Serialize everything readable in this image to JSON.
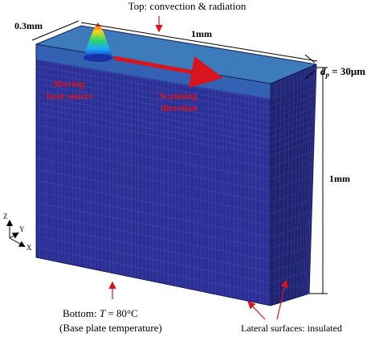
{
  "top_label": "Top: convection & radiation",
  "width_label": "0.3mm",
  "length_label": "1mm",
  "height_label": "1mm",
  "layer_label": {
    "symbol": "d",
    "sub": "p",
    "value": " = 30μm"
  },
  "heat_source": [
    "Moving",
    "heat source"
  ],
  "scan_direction": [
    "Scanning",
    "direction"
  ],
  "axes": {
    "z": "Z",
    "y": "Y",
    "x": "X"
  },
  "bottom_label": {
    "prefix": "Bottom: ",
    "var": "T",
    "value": " = 80°C"
  },
  "bottom_note": "(Base plate temperature)",
  "lateral_label": "Lateral surfaces: insulated",
  "colors": {
    "mesh_face": "#2c2f93",
    "mesh_side": "#20236f",
    "top_face": "#3b7fb8",
    "mesh_line": "#4f5fcf",
    "accent": "#d8141e"
  }
}
